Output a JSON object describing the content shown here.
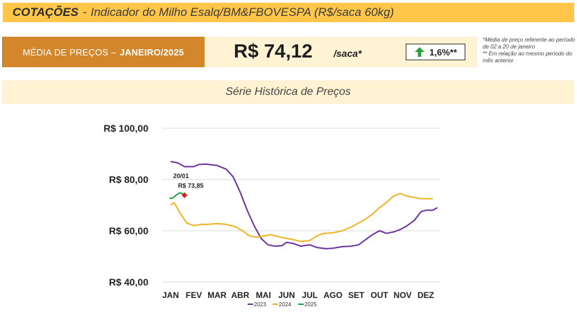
{
  "header": {
    "title_bold": "COTAÇÕES",
    "separator": "-",
    "title_rest": "Indicador do Milho Esalq/BM&FBOVESPA (R$/saca 60kg)"
  },
  "summary": {
    "label": "MÉDIA DE PREÇOS –",
    "month": "JANEIRO/2025",
    "price": "R$ 74,12",
    "unit": "/saca*",
    "change": "1,6%**",
    "change_direction": "up",
    "change_icon": "up-arrow-icon",
    "note1": "*Média de preço referente ao período de 02 a 20 de janeiro",
    "note2": "** Em relação ao mesmo período do mês anterior"
  },
  "series_title": "Série Histórica de Preços",
  "colors": {
    "title_bar": "#FFC64A",
    "label_bg": "#D4862A",
    "panel_bg": "#FFF3D4",
    "s2023": "#6A329F",
    "s2024": "#F0B323",
    "s2025": "#1E9E4B",
    "marker": "#E02020",
    "arrow": "#2E9E3A"
  },
  "chart_data": {
    "type": "line",
    "title": "",
    "xlabel": "",
    "ylabel": "",
    "x_unit": "month",
    "categories": [
      "JAN",
      "FEV",
      "MAR",
      "ABR",
      "MAI",
      "JUN",
      "JUL",
      "AGO",
      "SET",
      "OUT",
      "NOV",
      "DEZ"
    ],
    "y_ticks": [
      "R$ 40,00",
      "R$ 60,00",
      "R$ 80,00",
      "R$ 100,00"
    ],
    "ylim": [
      40,
      100
    ],
    "grid": "horizontal",
    "legend_position": "bottom",
    "series": [
      {
        "name": "2023",
        "color": "#6A329F",
        "points": [
          [
            0,
            87
          ],
          [
            0.3,
            86.5
          ],
          [
            0.6,
            85
          ],
          [
            1.0,
            85
          ],
          [
            1.2,
            85.8
          ],
          [
            1.5,
            86
          ],
          [
            2.0,
            85.5
          ],
          [
            2.4,
            84
          ],
          [
            2.7,
            81
          ],
          [
            3.0,
            75
          ],
          [
            3.3,
            68
          ],
          [
            3.6,
            62
          ],
          [
            3.9,
            57
          ],
          [
            4.2,
            54.5
          ],
          [
            4.5,
            54
          ],
          [
            4.8,
            54.2
          ],
          [
            5.0,
            55.5
          ],
          [
            5.3,
            55
          ],
          [
            5.6,
            54
          ],
          [
            6.0,
            54.5
          ],
          [
            6.3,
            53.5
          ],
          [
            6.7,
            53
          ],
          [
            7.0,
            53.2
          ],
          [
            7.4,
            53.8
          ],
          [
            7.8,
            54
          ],
          [
            8.1,
            54.5
          ],
          [
            8.4,
            56.5
          ],
          [
            8.7,
            58.5
          ],
          [
            9.0,
            60
          ],
          [
            9.3,
            59
          ],
          [
            9.6,
            59.5
          ],
          [
            9.9,
            60.5
          ],
          [
            10.2,
            62
          ],
          [
            10.5,
            64
          ],
          [
            10.8,
            67.5
          ],
          [
            11.0,
            68
          ],
          [
            11.3,
            68
          ],
          [
            11.5,
            69
          ]
        ]
      },
      {
        "name": "2024",
        "color": "#F0B323",
        "points": [
          [
            0,
            70
          ],
          [
            0.15,
            71
          ],
          [
            0.4,
            67
          ],
          [
            0.7,
            63
          ],
          [
            1.0,
            62
          ],
          [
            1.3,
            62.5
          ],
          [
            1.6,
            62.5
          ],
          [
            2.0,
            62.8
          ],
          [
            2.4,
            62.5
          ],
          [
            2.8,
            61.5
          ],
          [
            3.1,
            60
          ],
          [
            3.4,
            58
          ],
          [
            3.7,
            57.5
          ],
          [
            4.0,
            58
          ],
          [
            4.3,
            58.5
          ],
          [
            4.6,
            57.8
          ],
          [
            5.0,
            57
          ],
          [
            5.3,
            56.5
          ],
          [
            5.6,
            55.8
          ],
          [
            6.0,
            56.2
          ],
          [
            6.3,
            58
          ],
          [
            6.6,
            59
          ],
          [
            7.0,
            59.2
          ],
          [
            7.4,
            60
          ],
          [
            7.8,
            61.5
          ],
          [
            8.1,
            63
          ],
          [
            8.4,
            64.5
          ],
          [
            8.7,
            66.5
          ],
          [
            9.0,
            69
          ],
          [
            9.3,
            71
          ],
          [
            9.6,
            73.5
          ],
          [
            9.9,
            74.5
          ],
          [
            10.2,
            73.5
          ],
          [
            10.5,
            73
          ],
          [
            10.8,
            72.5
          ],
          [
            11.0,
            72.5
          ],
          [
            11.3,
            72.5
          ]
        ]
      },
      {
        "name": "2025",
        "color": "#1E9E4B",
        "points": [
          [
            -0.05,
            72.6
          ],
          [
            0.1,
            72.8
          ],
          [
            0.25,
            74
          ],
          [
            0.4,
            74.8
          ],
          [
            0.5,
            74.5
          ],
          [
            0.6,
            73.9
          ]
        ]
      }
    ],
    "annotation": {
      "x": 0.6,
      "y": 73.85,
      "date": "20/01",
      "value": "R$ 73,85"
    }
  }
}
